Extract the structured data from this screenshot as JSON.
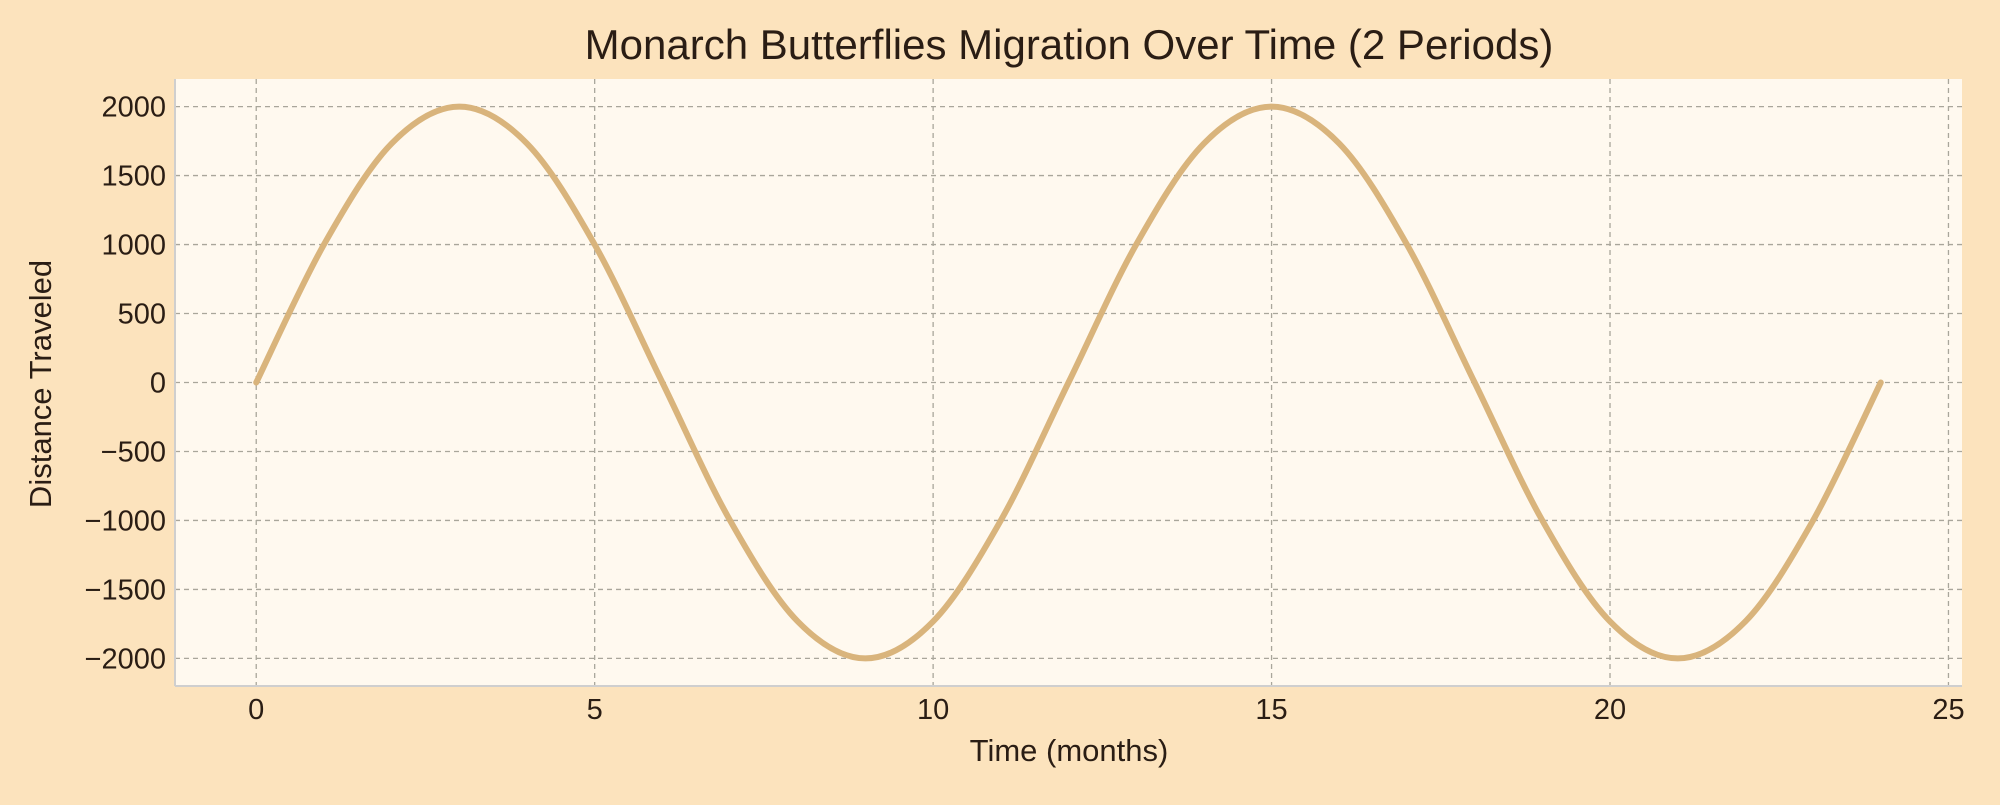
{
  "colors": {
    "background": "#fce3bd",
    "plot_background": "#fff9ef",
    "line": "#d9b47c",
    "grid": "#a9a69b",
    "text": "#2a1d14",
    "axis_spine": "#cfcfcf"
  },
  "chart_data": {
    "type": "line",
    "title": "Monarch Butterflies Migration Over Time (2 Periods)",
    "xlabel": "Time (months)",
    "ylabel": "Distance Traveled",
    "xlim": [
      -1.2,
      25.2
    ],
    "ylim": [
      -2200,
      2200
    ],
    "grid": true,
    "x_ticks": [
      0,
      5,
      10,
      15,
      20,
      25
    ],
    "x_tick_labels": [
      "0",
      "5",
      "10",
      "15",
      "20",
      "25"
    ],
    "y_ticks": [
      2000,
      1500,
      1000,
      500,
      0,
      -500,
      -1000,
      -1500,
      -2000
    ],
    "y_tick_labels": [
      "2000",
      "1500",
      "1000",
      "500",
      "0",
      "−500",
      "−1000",
      "−1500",
      "−2000"
    ],
    "series": [
      {
        "x": [
          0,
          1,
          2,
          3,
          4,
          5,
          6,
          7,
          8,
          9,
          10,
          11,
          12,
          13,
          14,
          15,
          16,
          17,
          18,
          19,
          20,
          21,
          22,
          23,
          24
        ],
        "y": [
          0,
          1000,
          1732,
          2000,
          1732,
          1000,
          0,
          -1000,
          -1732,
          -2000,
          -1732,
          -1000,
          0,
          1000,
          1732,
          2000,
          1732,
          1000,
          0,
          -1000,
          -1732,
          -2000,
          -1732,
          -1000,
          0
        ]
      }
    ]
  }
}
